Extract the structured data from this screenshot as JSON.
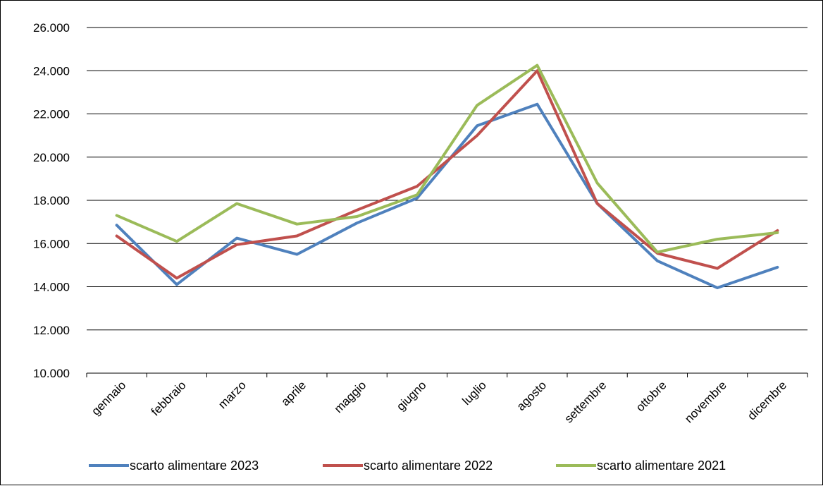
{
  "chart_data": {
    "type": "line",
    "title": "",
    "xlabel": "",
    "ylabel": "",
    "categories": [
      "gennaio",
      "febbraio",
      "marzo",
      "aprile",
      "maggio",
      "giugno",
      "luglio",
      "agosto",
      "settembre",
      "ottobre",
      "novembre",
      "dicembre"
    ],
    "ylim": [
      10000,
      26000
    ],
    "yticks": [
      10000,
      12000,
      14000,
      16000,
      18000,
      20000,
      22000,
      24000,
      26000
    ],
    "ytick_labels": [
      "10.000",
      "12.000",
      "14.000",
      "16.000",
      "18.000",
      "20.000",
      "22.000",
      "24.000",
      "26.000"
    ],
    "grid": true,
    "legend_position": "bottom",
    "series": [
      {
        "name": "scarto alimentare 2023",
        "color": "#4F81BD",
        "values": [
          16850,
          14100,
          16250,
          15500,
          16950,
          18100,
          21450,
          22450,
          17850,
          15200,
          13950,
          14900
        ]
      },
      {
        "name": "scarto alimentare 2022",
        "color": "#C0504D",
        "values": [
          16350,
          14400,
          15950,
          16350,
          17550,
          18650,
          21000,
          24000,
          17850,
          15550,
          14850,
          16600
        ]
      },
      {
        "name": "scarto alimentare 2021",
        "color": "#9BBB59",
        "values": [
          17300,
          16100,
          17850,
          16900,
          17250,
          18250,
          22400,
          24250,
          18800,
          15600,
          16200,
          16500
        ]
      }
    ]
  }
}
